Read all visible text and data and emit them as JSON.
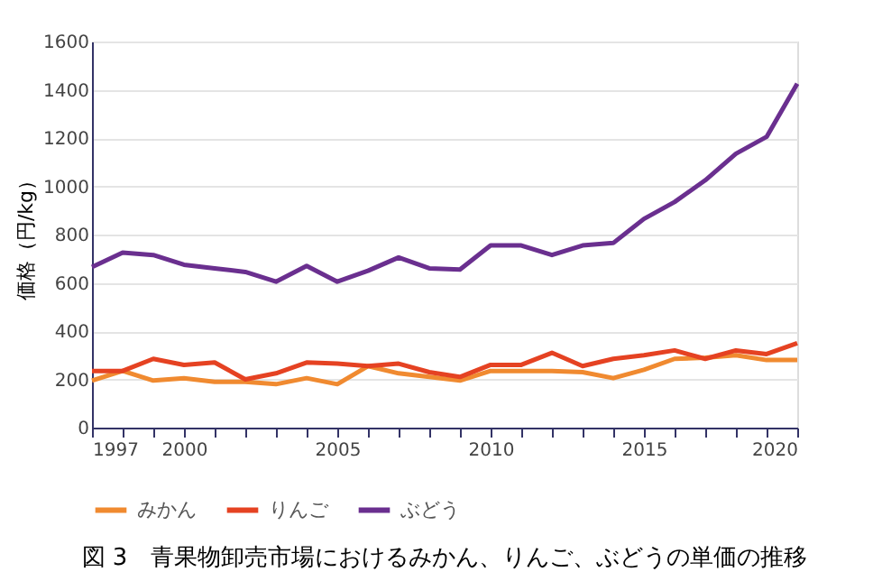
{
  "chart_data": {
    "type": "line",
    "ylabel": "価格（円/kg）",
    "annotations": [
      "図 3　青果物卸売市場におけるみかん、りんご、ぶどうの単価の推移"
    ],
    "x": [
      1997,
      1998,
      1999,
      2000,
      2001,
      2002,
      2003,
      2004,
      2005,
      2006,
      2007,
      2008,
      2009,
      2010,
      2011,
      2012,
      2013,
      2014,
      2015,
      2016,
      2017,
      2018,
      2019,
      2020
    ],
    "series": [
      {
        "name": "みかん",
        "color": "#f08a30",
        "values": [
          195,
          235,
          195,
          205,
          190,
          190,
          180,
          205,
          180,
          255,
          225,
          210,
          195,
          235,
          235,
          235,
          230,
          205,
          240,
          285,
          290,
          300,
          280,
          280
        ]
      },
      {
        "name": "りんご",
        "color": "#e54222",
        "values": [
          235,
          235,
          285,
          260,
          270,
          200,
          225,
          270,
          265,
          255,
          265,
          230,
          210,
          260,
          260,
          310,
          255,
          285,
          300,
          320,
          285,
          320,
          305,
          350
        ]
      },
      {
        "name": "ぶどう",
        "color": "#6a2f8f",
        "values": [
          665,
          725,
          715,
          675,
          660,
          645,
          605,
          670,
          605,
          650,
          705,
          660,
          655,
          755,
          755,
          715,
          755,
          765,
          865,
          935,
          1025,
          1135,
          1205,
          1425
        ]
      }
    ],
    "xlim": [
      1997,
      2020
    ],
    "xticks": [
      1997,
      {
        "value": 1998,
        "label": null
      },
      {
        "value": 1999,
        "label": null
      },
      2000,
      {
        "value": 2001,
        "label": null
      },
      {
        "value": 2002,
        "label": null
      },
      {
        "value": 2003,
        "label": null
      },
      {
        "value": 2004,
        "label": null
      },
      2005,
      {
        "value": 2006,
        "label": null
      },
      {
        "value": 2007,
        "label": null
      },
      {
        "value": 2008,
        "label": null
      },
      {
        "value": 2009,
        "label": null
      },
      2010,
      {
        "value": 2011,
        "label": null
      },
      {
        "value": 2012,
        "label": null
      },
      {
        "value": 2013,
        "label": null
      },
      {
        "value": 2014,
        "label": null
      },
      2015,
      {
        "value": 2016,
        "label": null
      },
      {
        "value": 2017,
        "label": null
      },
      {
        "value": 2018,
        "label": null
      },
      {
        "value": 2019,
        "label": null
      },
      2020
    ],
    "ylim": [
      0,
      1600
    ],
    "yticks": [
      0,
      200,
      400,
      600,
      800,
      1000,
      1200,
      1400,
      1600
    ],
    "grid": "y",
    "legend": "bottom",
    "marker": "none",
    "line_style": "solid"
  }
}
